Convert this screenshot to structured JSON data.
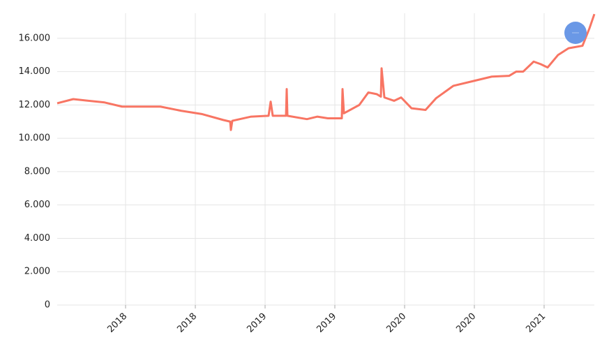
{
  "chart_data": {
    "type": "line",
    "x": [
      2017.51,
      2017.625,
      2017.85,
      2017.975,
      2018.25,
      2018.4,
      2018.55,
      2018.7,
      2018.75,
      2018.755,
      2018.765,
      2018.9,
      2019.025,
      2019.04,
      2019.055,
      2019.15,
      2019.155,
      2019.16,
      2019.3,
      2019.375,
      2019.45,
      2019.55,
      2019.555,
      2019.565,
      2019.675,
      2019.74,
      2019.8,
      2019.83,
      2019.835,
      2019.855,
      2019.925,
      2019.975,
      2020.05,
      2020.15,
      2020.225,
      2020.35,
      2020.5,
      2020.625,
      2020.75,
      2020.8,
      2020.85,
      2020.925,
      2020.975,
      2021.025,
      2021.1,
      2021.175,
      2021.275,
      2021.325,
      2021.36
    ],
    "series": [
      {
        "color": "#f87563",
        "values": [
          12100,
          12350,
          12150,
          11900,
          11900,
          11650,
          11450,
          11100,
          11000,
          10500,
          11050,
          11300,
          11350,
          12200,
          11350,
          11350,
          12950,
          11350,
          11150,
          11300,
          11200,
          11200,
          12950,
          11500,
          12000,
          12750,
          12650,
          12500,
          14200,
          12450,
          12250,
          12450,
          11800,
          11700,
          12400,
          13150,
          13450,
          13700,
          13750,
          14000,
          14000,
          14600,
          14450,
          14250,
          15000,
          15400,
          15550,
          16600,
          17450
        ]
      }
    ],
    "xlim": [
      2017.51,
      2021.36
    ],
    "xticks": [
      {
        "value": 2018,
        "label": "2018"
      },
      {
        "value": 2018.5,
        "label": "2018"
      },
      {
        "value": 2019,
        "label": "2019"
      },
      {
        "value": 2019.5,
        "label": "2019"
      },
      {
        "value": 2020,
        "label": "2020"
      },
      {
        "value": 2020.5,
        "label": "2020"
      },
      {
        "value": 2021,
        "label": "2021"
      }
    ],
    "ylim": [
      0,
      17500
    ],
    "yticks": [
      0,
      {
        "value": 2000,
        "label": "2.000"
      },
      {
        "value": 4000,
        "label": "4.000"
      },
      {
        "value": 6000,
        "label": "6.000"
      },
      {
        "value": 8000,
        "label": "8.000"
      },
      {
        "value": 10000,
        "label": "10.000"
      },
      {
        "value": 12000,
        "label": "12.000"
      },
      {
        "value": 14000,
        "label": "14.000"
      },
      {
        "value": 16000,
        "label": "16.000"
      }
    ],
    "grid": true
  }
}
